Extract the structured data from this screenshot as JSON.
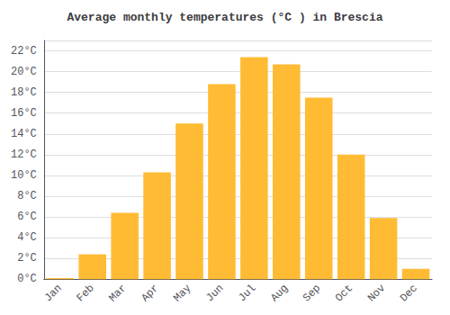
{
  "chart_data": {
    "type": "bar",
    "title": "Average monthly temperatures (°C ) in Brescia",
    "categories": [
      "Jan",
      "Feb",
      "Mar",
      "Apr",
      "May",
      "Jun",
      "Jul",
      "Aug",
      "Sep",
      "Oct",
      "Nov",
      "Dec"
    ],
    "values": [
      0.1,
      2.4,
      6.4,
      10.3,
      15.0,
      18.8,
      21.4,
      20.7,
      17.5,
      12.0,
      5.9,
      1.0
    ],
    "color": "#FFBB33",
    "ylim": [
      0,
      23
    ],
    "yticks": [
      {
        "value": 0,
        "label": "0°C"
      },
      {
        "value": 2,
        "label": "2°C"
      },
      {
        "value": 4,
        "label": "4°C"
      },
      {
        "value": 6,
        "label": "6°C"
      },
      {
        "value": 8,
        "label": "8°C"
      },
      {
        "value": 10,
        "label": "10°C"
      },
      {
        "value": 12,
        "label": "12°C"
      },
      {
        "value": 14,
        "label": "14°C"
      },
      {
        "value": 16,
        "label": "16°C"
      },
      {
        "value": 18,
        "label": "18°C"
      },
      {
        "value": 20,
        "label": "20°C"
      },
      {
        "value": 22,
        "label": "22°C"
      }
    ],
    "grid": true
  }
}
